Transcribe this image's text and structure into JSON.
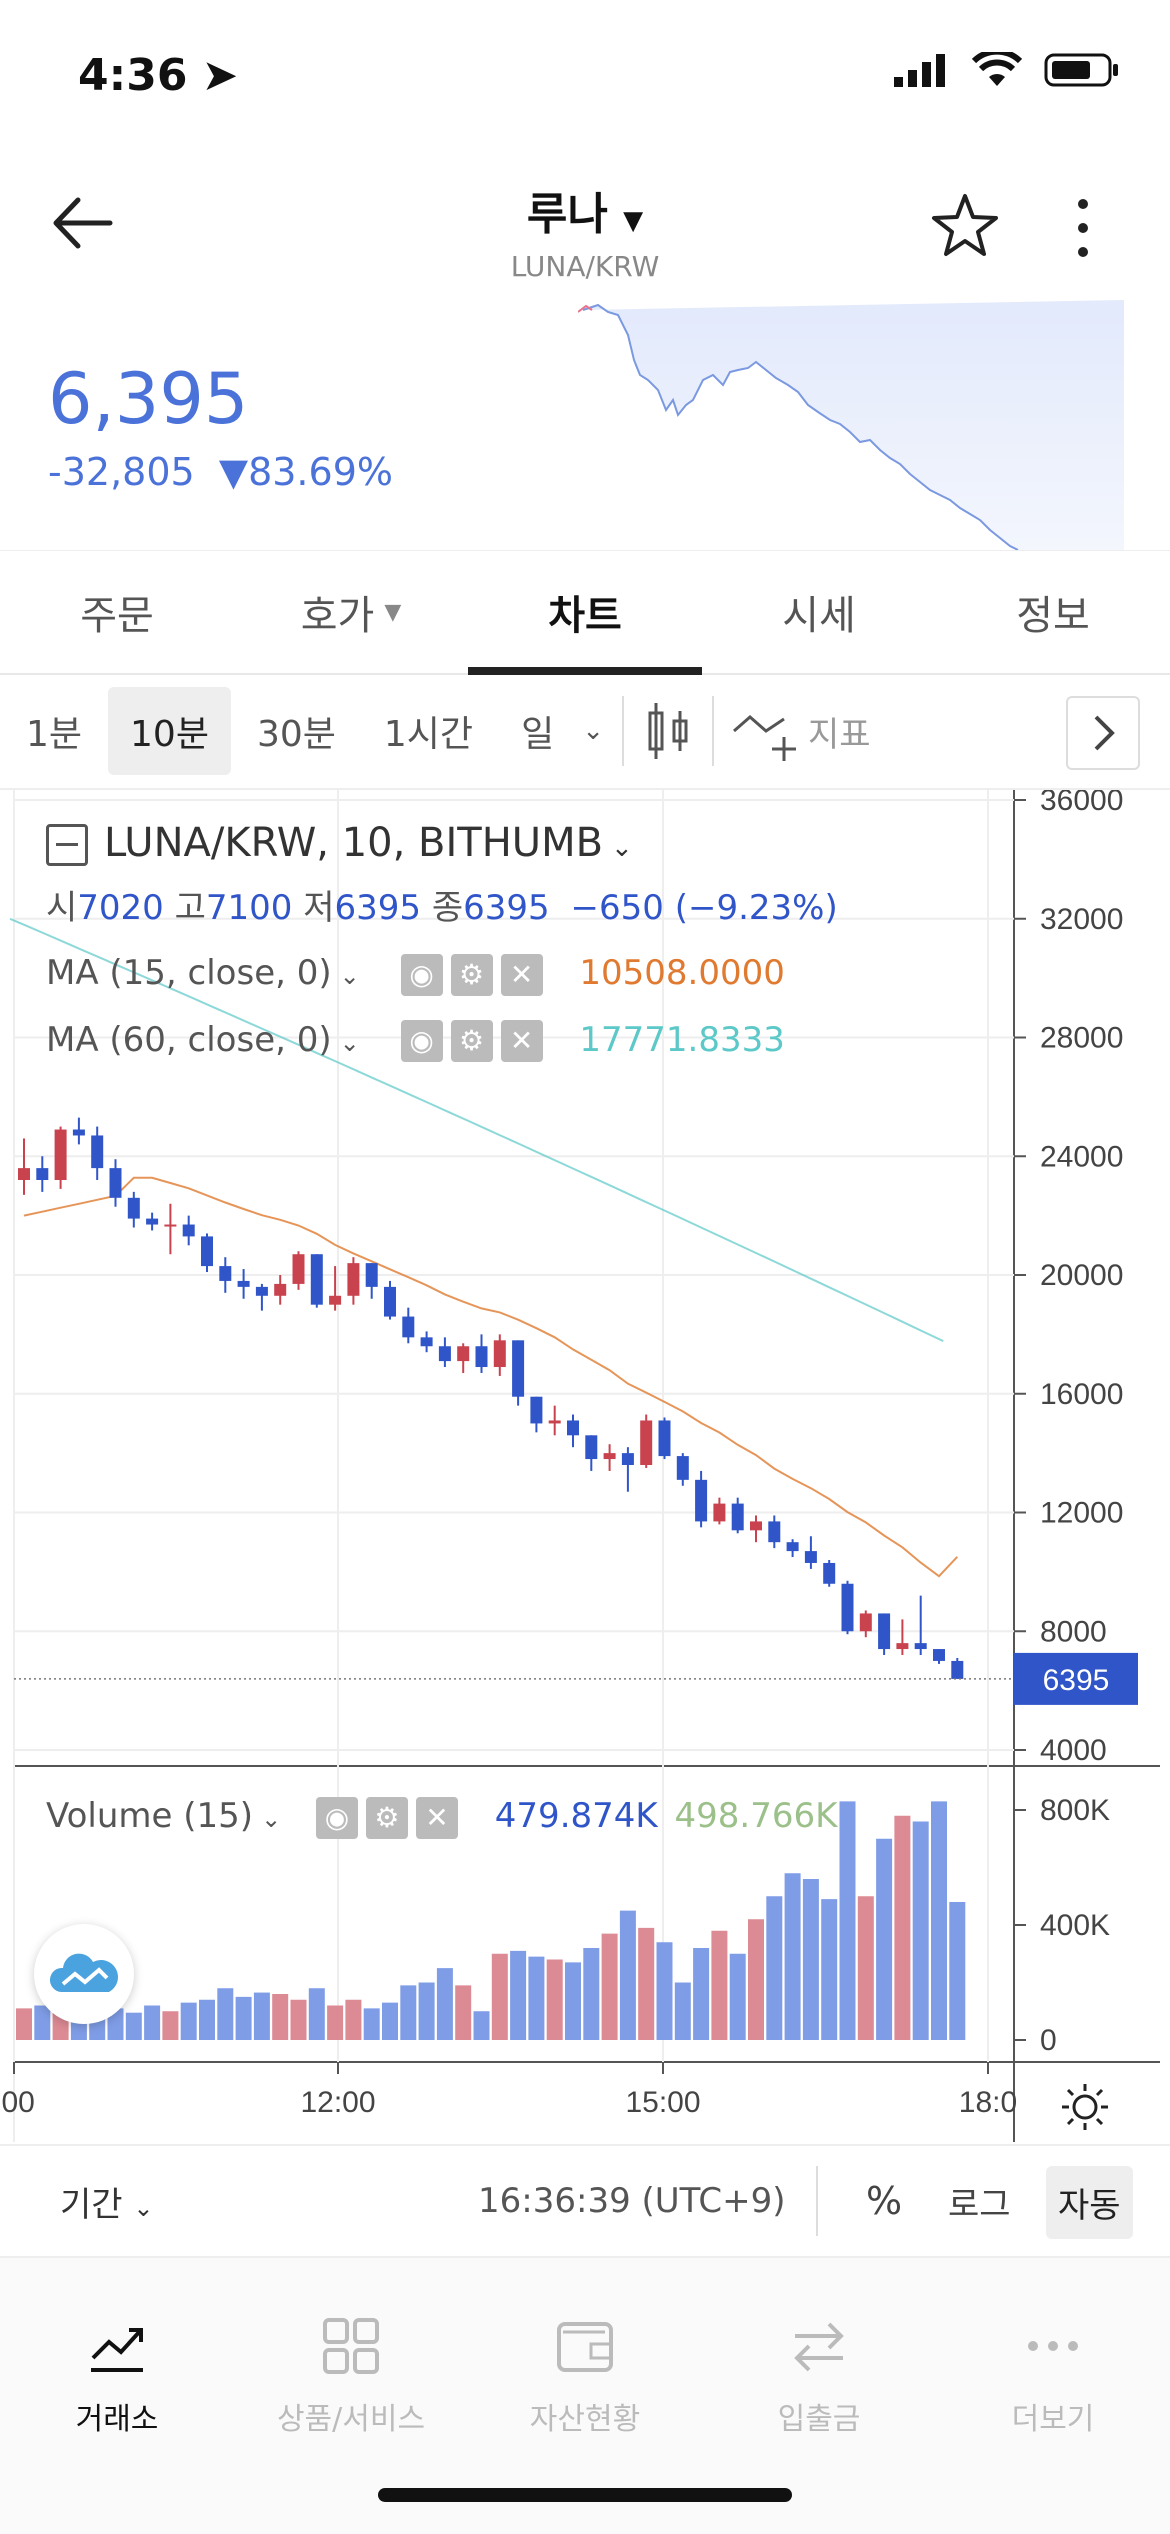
{
  "status": {
    "time": "4:36"
  },
  "header": {
    "title": "루나",
    "pair": "LUNA/KRW"
  },
  "price": {
    "current": "6,395",
    "change": "-32,805",
    "change_pct": "▼83.69%",
    "color": "#4a72d8"
  },
  "tabs": [
    {
      "label": "주문"
    },
    {
      "label": "호가"
    },
    {
      "label": "차트"
    },
    {
      "label": "시세"
    },
    {
      "label": "정보"
    }
  ],
  "intervals": [
    "1분",
    "10분",
    "30분",
    "1시간",
    "일"
  ],
  "indicator_label": "지표",
  "chart": {
    "title": "LUNA/KRW, 10, BITHUMB",
    "ohlc": {
      "o_label": "시",
      "o": "7020",
      "h_label": "고",
      "h": "7100",
      "l_label": "저",
      "l": "6395",
      "c_label": "종",
      "c": "6395",
      "chg": "−650 (−9.23%)"
    },
    "ma15": {
      "label": "MA (15, close, 0)",
      "value": "10508.0000",
      "color": "#e07a30"
    },
    "ma60": {
      "label": "MA (60, close, 0)",
      "value": "17771.8333",
      "color": "#5cc8c8"
    },
    "volume": {
      "label": "Volume (15)",
      "v1": "479.874K",
      "v2": "498.766K"
    },
    "price_axis": [
      "36000",
      "32000",
      "28000",
      "24000",
      "20000",
      "16000",
      "12000",
      "8000",
      "4000"
    ],
    "volume_axis": [
      "800K",
      "400K",
      "0"
    ],
    "time_axis": [
      ":00",
      "12:00",
      "15:00",
      "18:0"
    ],
    "last_price": "6395"
  },
  "chart_data": {
    "type": "candlestick",
    "candles": [
      [
        23200,
        24600,
        22700,
        23600
      ],
      [
        23600,
        24000,
        22800,
        23200
      ],
      [
        23200,
        25000,
        22900,
        24900
      ],
      [
        24900,
        25300,
        24400,
        24700
      ],
      [
        24700,
        25000,
        23200,
        23600
      ],
      [
        23600,
        23900,
        22300,
        22600
      ],
      [
        22600,
        22800,
        21600,
        21900
      ],
      [
        21900,
        22100,
        21500,
        21700
      ],
      [
        21700,
        22400,
        20700,
        21700
      ],
      [
        21700,
        22000,
        21000,
        21300
      ],
      [
        21300,
        21400,
        20100,
        20300
      ],
      [
        20300,
        20600,
        19400,
        19800
      ],
      [
        19800,
        20200,
        19200,
        19600
      ],
      [
        19600,
        19700,
        18800,
        19300
      ],
      [
        19300,
        20000,
        19000,
        19700
      ],
      [
        19700,
        20800,
        19500,
        20700
      ],
      [
        20700,
        20700,
        18900,
        19000
      ],
      [
        19000,
        20300,
        18800,
        19300
      ],
      [
        19300,
        20600,
        19000,
        20400
      ],
      [
        20400,
        20400,
        19200,
        19600
      ],
      [
        19600,
        19800,
        18500,
        18600
      ],
      [
        18600,
        18900,
        17700,
        17900
      ],
      [
        17900,
        18100,
        17400,
        17600
      ],
      [
        17600,
        17900,
        16900,
        17100
      ],
      [
        17100,
        17700,
        16700,
        17600
      ],
      [
        17600,
        18000,
        16700,
        16900
      ],
      [
        16900,
        18000,
        16600,
        17800
      ],
      [
        17800,
        17800,
        15600,
        15900
      ],
      [
        15900,
        15900,
        14700,
        15000
      ],
      [
        15000,
        15600,
        14600,
        15100
      ],
      [
        15100,
        15300,
        14200,
        14600
      ],
      [
        14600,
        14600,
        13400,
        13800
      ],
      [
        13800,
        14300,
        13400,
        14000
      ],
      [
        14000,
        14200,
        12700,
        13600
      ],
      [
        13600,
        15300,
        13500,
        15100
      ],
      [
        15100,
        15200,
        13800,
        13900
      ],
      [
        13900,
        14000,
        12900,
        13100
      ],
      [
        13100,
        13400,
        11500,
        11700
      ],
      [
        11700,
        12500,
        11600,
        12300
      ],
      [
        12300,
        12500,
        11300,
        11400
      ],
      [
        11400,
        11900,
        11000,
        11700
      ],
      [
        11700,
        11900,
        10800,
        11000
      ],
      [
        11000,
        11100,
        10500,
        10700
      ],
      [
        10700,
        11200,
        10100,
        10300
      ],
      [
        10300,
        10400,
        9500,
        9600
      ],
      [
        9600,
        9700,
        7900,
        8000
      ],
      [
        8000,
        8700,
        7800,
        8600
      ],
      [
        8600,
        8600,
        7200,
        7400
      ],
      [
        7400,
        8400,
        7200,
        7600
      ],
      [
        7600,
        9200,
        7200,
        7400
      ],
      [
        7400,
        7400,
        6900,
        7000
      ],
      [
        7000,
        7100,
        6395,
        6395
      ]
    ],
    "volumes_k": [
      110,
      120,
      115,
      105,
      100,
      110,
      95,
      120,
      100,
      130,
      140,
      180,
      150,
      165,
      160,
      140,
      180,
      120,
      140,
      110,
      130,
      190,
      200,
      250,
      190,
      100,
      300,
      310,
      290,
      280,
      270,
      320,
      370,
      450,
      390,
      340,
      200,
      320,
      380,
      300,
      420,
      500,
      580,
      560,
      490,
      830,
      500,
      700,
      780,
      760,
      830,
      480
    ],
    "ylim": [
      4000,
      36000
    ],
    "volume_ylim_k": [
      0,
      800
    ],
    "ma15_start": 22000,
    "ma15_end": 10508,
    "ma60_start": 32000,
    "ma60_end": 17771.8333
  },
  "bottom": {
    "period": "기간",
    "time": "16:36:39 (UTC+9)",
    "pct": "%",
    "log": "로그",
    "auto": "자동"
  },
  "nav": [
    {
      "label": "거래소"
    },
    {
      "label": "상품/서비스"
    },
    {
      "label": "자산현황"
    },
    {
      "label": "입출금"
    },
    {
      "label": "더보기"
    }
  ]
}
